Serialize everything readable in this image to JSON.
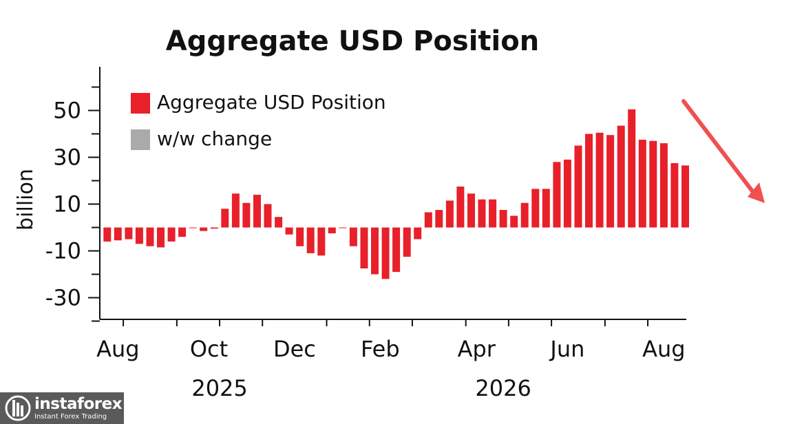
{
  "chart_data": {
    "type": "bar",
    "title": "Aggregate USD Position",
    "ylabel": "billion",
    "xlabel": "",
    "ylim": [
      -40,
      70
    ],
    "yticks": [
      50,
      30,
      10,
      -10,
      -30
    ],
    "ytick_labels": [
      "50",
      "30",
      "10",
      "-10",
      "-30"
    ],
    "x_month_labels": [
      {
        "label": "Aug",
        "week": 1
      },
      {
        "label": "Oct",
        "week": 9.5
      },
      {
        "label": "Dec",
        "week": 17.5
      },
      {
        "label": "Feb",
        "week": 25.5
      },
      {
        "label": "Apr",
        "week": 34.5
      },
      {
        "label": "Jun",
        "week": 43
      },
      {
        "label": "Aug",
        "week": 52
      }
    ],
    "x_year_labels": [
      {
        "label": "2025",
        "week": 10.5
      },
      {
        "label": "2026",
        "week": 37
      }
    ],
    "legend": [
      {
        "label": "Aggregate USD Position",
        "color": "#e8202a"
      },
      {
        "label": "w/w change",
        "color": "#aaaaaa"
      }
    ],
    "series": [
      {
        "name": "Aggregate USD Position",
        "color": "#e8202a",
        "values": [
          -6,
          -5.5,
          -5,
          -7,
          -8,
          -8.5,
          -6,
          -4,
          -0.3,
          -1.5,
          -0.5,
          8,
          14.5,
          10.5,
          14,
          10,
          4.5,
          -3,
          -8,
          -11,
          -12,
          -2.5,
          -0.3,
          -8,
          -17.5,
          -20,
          -22,
          -19,
          -12.5,
          -5,
          6.5,
          7.5,
          11.5,
          17.5,
          14.5,
          12,
          12,
          7.5,
          5,
          10.5,
          16.5,
          16.5,
          28,
          29,
          35,
          40,
          40.5,
          39.5,
          43.5,
          50.5,
          37.5,
          37,
          36,
          27.5,
          26.5
        ]
      },
      {
        "name": "w/w change",
        "color": "#aaaaaa",
        "values": []
      }
    ]
  }
}
